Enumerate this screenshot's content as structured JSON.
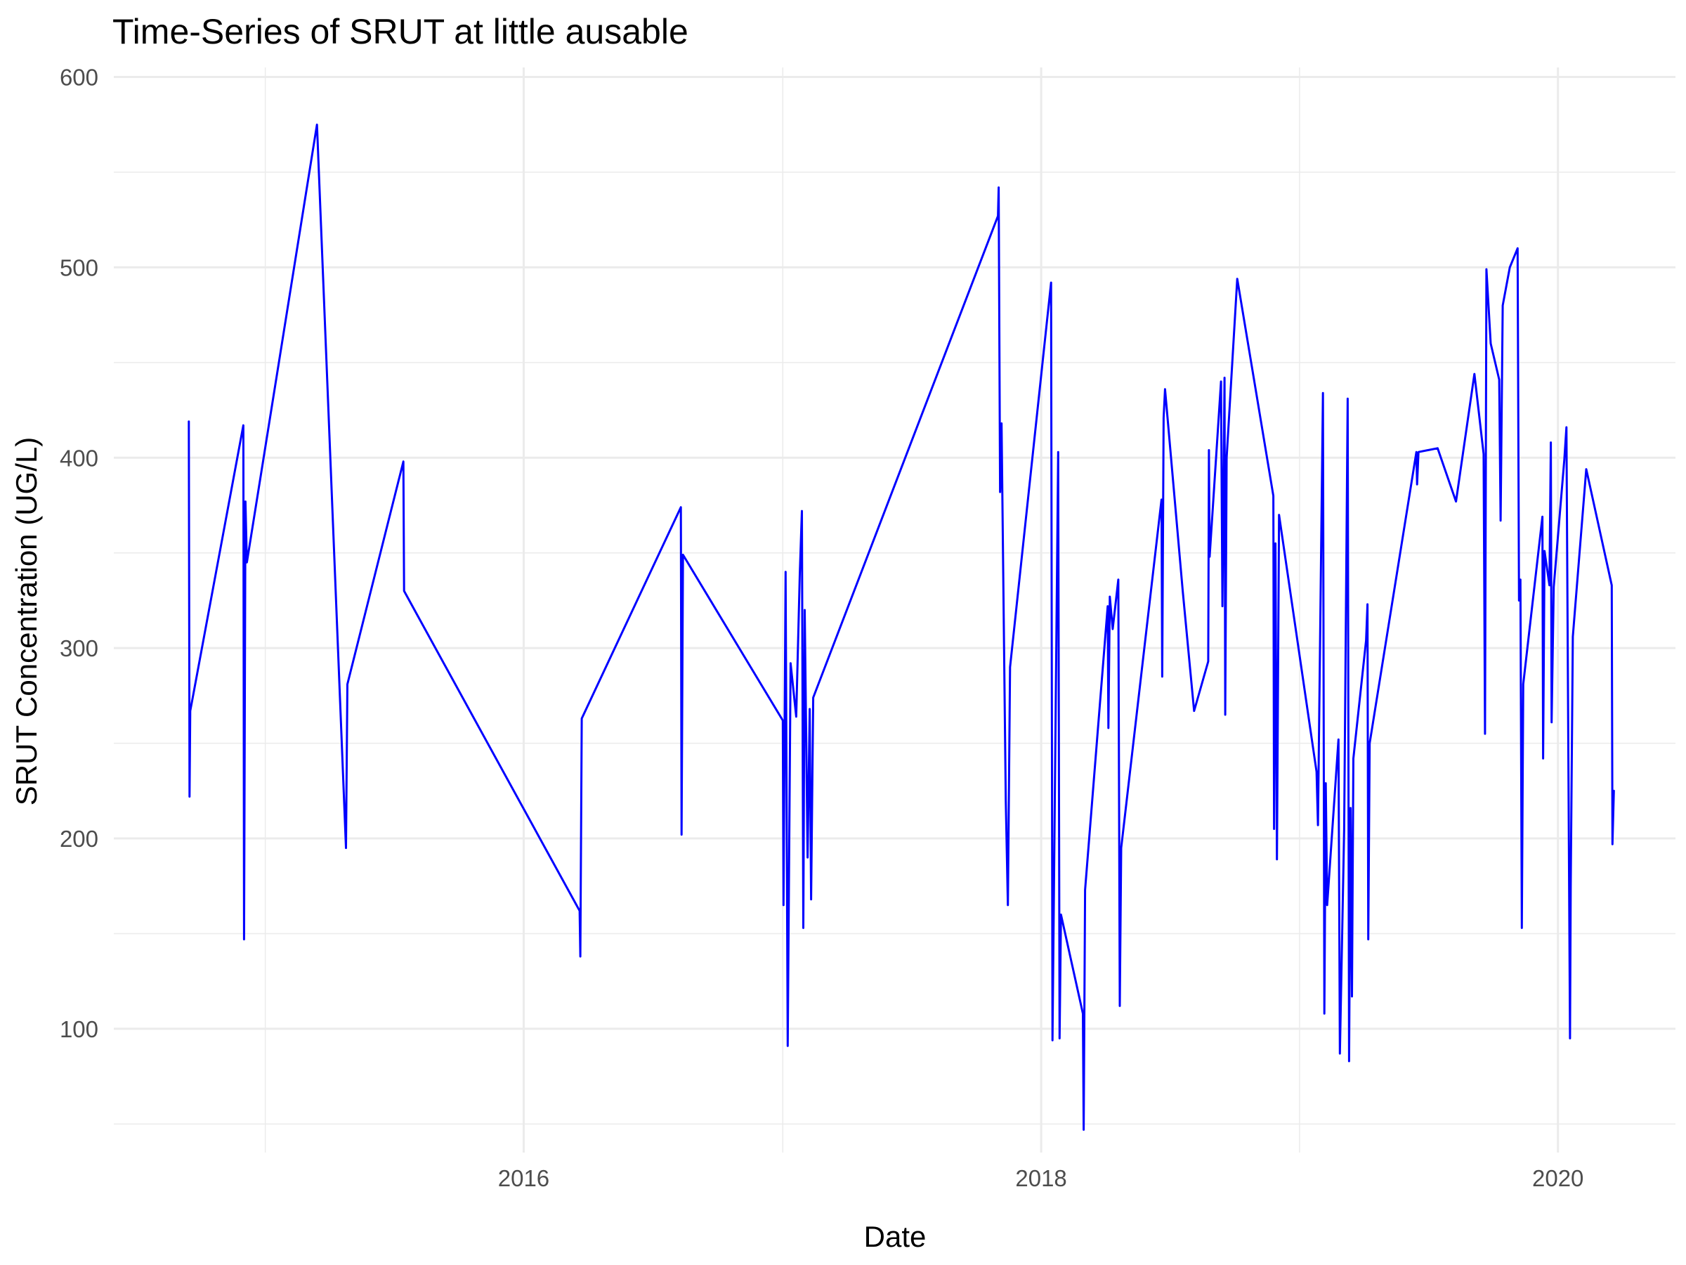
{
  "chart_data": {
    "type": "line",
    "title": "Time-Series of SRUT at little ausable",
    "xlabel": "Date",
    "ylabel": "SRUT Concentration (UG/L)",
    "xlim": [
      "2014-06-01",
      "2020-06-15"
    ],
    "ylim": [
      35,
      605
    ],
    "x_major_ticks": [
      {
        "date": "2016-01-01",
        "label": "2016"
      },
      {
        "date": "2018-01-01",
        "label": "2018"
      },
      {
        "date": "2020-01-01",
        "label": "2020"
      }
    ],
    "x_minor_ticks": [
      "2015-01-01",
      "2017-01-01",
      "2019-01-01"
    ],
    "y_major_ticks": [
      100,
      200,
      300,
      400,
      500,
      600
    ],
    "y_minor_ticks": [
      50,
      150,
      250,
      350,
      450,
      550
    ],
    "grid": true,
    "legend": "none",
    "series": [
      {
        "color": "#0000ff",
        "points": [
          [
            "2014-09-15",
            419
          ],
          [
            "2014-09-16",
            222
          ],
          [
            "2014-09-17",
            267
          ],
          [
            "2014-12-01",
            417
          ],
          [
            "2014-12-02",
            147
          ],
          [
            "2014-12-04",
            377
          ],
          [
            "2014-12-06",
            345
          ],
          [
            "2015-03-15",
            575
          ],
          [
            "2015-04-25",
            195
          ],
          [
            "2015-04-27",
            281
          ],
          [
            "2015-07-15",
            398
          ],
          [
            "2015-07-16",
            330
          ],
          [
            "2016-03-20",
            162
          ],
          [
            "2016-03-21",
            138
          ],
          [
            "2016-03-23",
            263
          ],
          [
            "2016-08-10",
            374
          ],
          [
            "2016-08-11",
            202
          ],
          [
            "2016-08-13",
            349
          ],
          [
            "2017-01-01",
            262
          ],
          [
            "2017-01-02",
            165
          ],
          [
            "2017-01-05",
            340
          ],
          [
            "2017-01-08",
            91
          ],
          [
            "2017-01-12",
            292
          ],
          [
            "2017-01-20",
            264
          ],
          [
            "2017-01-25",
            339
          ],
          [
            "2017-01-28",
            372
          ],
          [
            "2017-01-30",
            153
          ],
          [
            "2017-02-01",
            320
          ],
          [
            "2017-02-05",
            190
          ],
          [
            "2017-02-08",
            268
          ],
          [
            "2017-02-10",
            168
          ],
          [
            "2017-02-13",
            274
          ],
          [
            "2017-11-01",
            527
          ],
          [
            "2017-11-02",
            542
          ],
          [
            "2017-11-04",
            382
          ],
          [
            "2017-11-06",
            418
          ],
          [
            "2017-11-12",
            220
          ],
          [
            "2017-11-15",
            165
          ],
          [
            "2017-11-18",
            290
          ],
          [
            "2018-01-15",
            492
          ],
          [
            "2018-01-17",
            94
          ],
          [
            "2018-01-25",
            403
          ],
          [
            "2018-01-27",
            95
          ],
          [
            "2018-01-29",
            160
          ],
          [
            "2018-03-01",
            108
          ],
          [
            "2018-03-02",
            47
          ],
          [
            "2018-03-04",
            173
          ],
          [
            "2018-04-05",
            322
          ],
          [
            "2018-04-06",
            258
          ],
          [
            "2018-04-08",
            327
          ],
          [
            "2018-04-12",
            310
          ],
          [
            "2018-04-20",
            336
          ],
          [
            "2018-04-22",
            112
          ],
          [
            "2018-04-24",
            195
          ],
          [
            "2018-06-20",
            378
          ],
          [
            "2018-06-21",
            285
          ],
          [
            "2018-06-23",
            421
          ],
          [
            "2018-06-25",
            436
          ],
          [
            "2018-07-20",
            330
          ],
          [
            "2018-08-05",
            267
          ],
          [
            "2018-08-25",
            293
          ],
          [
            "2018-08-26",
            404
          ],
          [
            "2018-08-27",
            348
          ],
          [
            "2018-09-12",
            440
          ],
          [
            "2018-09-14",
            322
          ],
          [
            "2018-09-17",
            442
          ],
          [
            "2018-09-18",
            265
          ],
          [
            "2018-09-20",
            400
          ],
          [
            "2018-10-05",
            494
          ],
          [
            "2018-11-25",
            380
          ],
          [
            "2018-11-26",
            205
          ],
          [
            "2018-11-28",
            355
          ],
          [
            "2018-11-30",
            189
          ],
          [
            "2018-12-03",
            370
          ],
          [
            "2019-01-25",
            235
          ],
          [
            "2019-01-27",
            207
          ],
          [
            "2019-02-03",
            434
          ],
          [
            "2019-02-05",
            108
          ],
          [
            "2019-02-07",
            229
          ],
          [
            "2019-02-09",
            165
          ],
          [
            "2019-02-25",
            252
          ],
          [
            "2019-02-27",
            87
          ],
          [
            "2019-03-05",
            205
          ],
          [
            "2019-03-10",
            431
          ],
          [
            "2019-03-12",
            83
          ],
          [
            "2019-03-14",
            216
          ],
          [
            "2019-03-16",
            117
          ],
          [
            "2019-03-18",
            242
          ],
          [
            "2019-04-05",
            304
          ],
          [
            "2019-04-07",
            323
          ],
          [
            "2019-04-08",
            147
          ],
          [
            "2019-04-10",
            250
          ],
          [
            "2019-06-15",
            403
          ],
          [
            "2019-06-16",
            386
          ],
          [
            "2019-06-18",
            403
          ],
          [
            "2019-07-15",
            405
          ],
          [
            "2019-08-10",
            377
          ],
          [
            "2019-09-05",
            444
          ],
          [
            "2019-09-18",
            402
          ],
          [
            "2019-09-20",
            255
          ],
          [
            "2019-09-22",
            499
          ],
          [
            "2019-09-28",
            460
          ],
          [
            "2019-10-10",
            441
          ],
          [
            "2019-10-12",
            367
          ],
          [
            "2019-10-15",
            480
          ],
          [
            "2019-10-25",
            500
          ],
          [
            "2019-11-05",
            510
          ],
          [
            "2019-11-07",
            325
          ],
          [
            "2019-11-09",
            336
          ],
          [
            "2019-11-11",
            153
          ],
          [
            "2019-11-13",
            281
          ],
          [
            "2019-12-10",
            369
          ],
          [
            "2019-12-11",
            242
          ],
          [
            "2019-12-13",
            351
          ],
          [
            "2019-12-20",
            333
          ],
          [
            "2019-12-22",
            408
          ],
          [
            "2019-12-23",
            261
          ],
          [
            "2019-12-26",
            332
          ],
          [
            "2020-01-10",
            399
          ],
          [
            "2020-01-13",
            416
          ],
          [
            "2020-01-18",
            95
          ],
          [
            "2020-01-19",
            175
          ],
          [
            "2020-01-22",
            306
          ],
          [
            "2020-02-10",
            394
          ],
          [
            "2020-03-17",
            333
          ],
          [
            "2020-03-18",
            197
          ],
          [
            "2020-03-20",
            225
          ]
        ]
      }
    ]
  }
}
